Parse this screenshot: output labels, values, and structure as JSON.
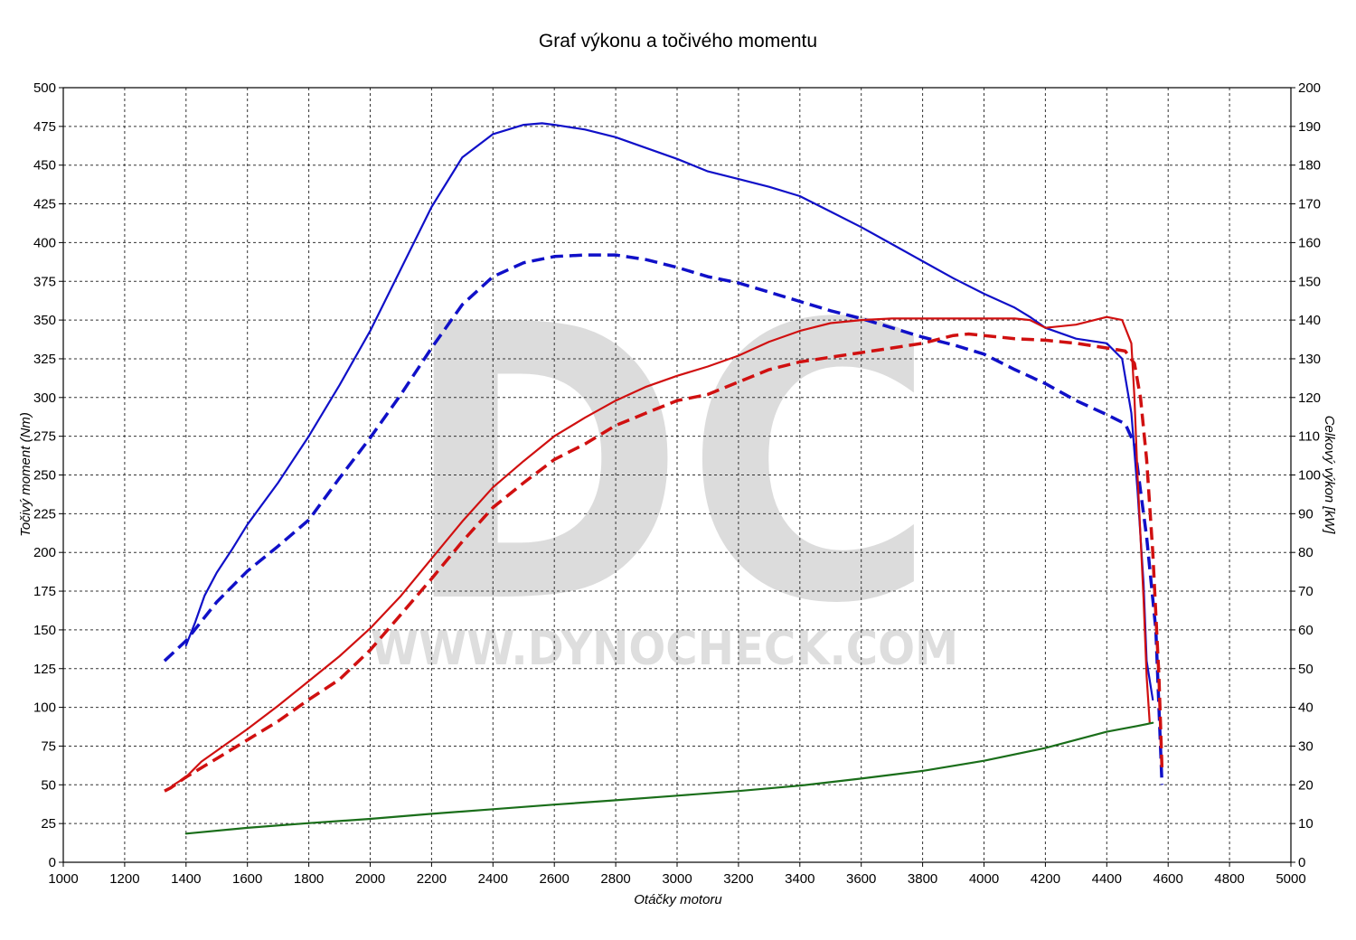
{
  "chart_data": {
    "type": "line",
    "title": "Graf výkonu a točivého momentu",
    "xlabel": "Otáčky motoru",
    "ylabel_left": "Točivý moment (Nm)",
    "ylabel_right": "Celkový výkon [kW]",
    "xlim": [
      1000,
      5000
    ],
    "ylim_left": [
      0,
      500
    ],
    "ylim_right": [
      0,
      200
    ],
    "x_ticks": [
      "1000",
      "1200",
      "1400",
      "1600",
      "1800",
      "2000",
      "2200",
      "2400",
      "2600",
      "2800",
      "3000",
      "3200",
      "3400",
      "3600",
      "3800",
      "4000",
      "4200",
      "4400",
      "4600",
      "4800",
      "5000"
    ],
    "y_left_ticks": [
      "0",
      "25",
      "50",
      "75",
      "100",
      "125",
      "150",
      "175",
      "200",
      "225",
      "250",
      "275",
      "300",
      "325",
      "350",
      "375",
      "400",
      "425",
      "450",
      "475",
      "500"
    ],
    "y_right_ticks": [
      "0",
      "10",
      "20",
      "30",
      "40",
      "50",
      "60",
      "70",
      "80",
      "90",
      "100",
      "110",
      "120",
      "130",
      "140",
      "150",
      "160",
      "170",
      "180",
      "190",
      "200"
    ],
    "grid": true,
    "legend": "none",
    "watermark": {
      "logo": "DC",
      "url": "WWW.DYNOCHECK.COM"
    },
    "series": [
      {
        "axis": "left",
        "color": "#1010c8",
        "style": "solid",
        "x": [
          1400,
          1430,
          1460,
          1500,
          1550,
          1600,
          1700,
          1800,
          1900,
          2000,
          2100,
          2200,
          2300,
          2400,
          2500,
          2560,
          2600,
          2700,
          2800,
          2900,
          3000,
          3100,
          3200,
          3300,
          3400,
          3500,
          3600,
          3700,
          3800,
          3900,
          4000,
          4100,
          4150,
          4200,
          4300,
          4400,
          4450,
          4480,
          4500,
          4520,
          4530,
          4550
        ],
        "y": [
          140,
          155,
          172,
          187,
          202,
          218,
          245,
          275,
          308,
          343,
          383,
          423,
          455,
          470,
          476,
          477,
          476,
          473,
          468,
          461,
          454,
          446,
          441,
          436,
          430,
          420,
          410,
          399,
          388,
          377,
          367,
          358,
          352,
          345,
          338,
          335,
          325,
          290,
          240,
          180,
          130,
          105
        ]
      },
      {
        "axis": "left",
        "color": "#1010c8",
        "style": "dashed",
        "x": [
          1330,
          1400,
          1500,
          1600,
          1700,
          1800,
          1900,
          2000,
          2100,
          2200,
          2300,
          2400,
          2500,
          2600,
          2700,
          2800,
          2900,
          3000,
          3100,
          3200,
          3300,
          3400,
          3500,
          3600,
          3700,
          3800,
          3900,
          4000,
          4100,
          4200,
          4300,
          4400,
          4460,
          4490,
          4510,
          4530,
          4560,
          4580
        ],
        "y": [
          130,
          143,
          168,
          188,
          204,
          221,
          248,
          274,
          302,
          332,
          360,
          378,
          387,
          391,
          392,
          392,
          389,
          384,
          378,
          374,
          368,
          362,
          356,
          351,
          345,
          339,
          334,
          328,
          318,
          309,
          298,
          289,
          283,
          270,
          240,
          210,
          150,
          50
        ]
      },
      {
        "axis": "left",
        "color": "#d01010",
        "style": "solid",
        "x": [
          1360,
          1400,
          1450,
          1500,
          1600,
          1700,
          1800,
          1900,
          2000,
          2100,
          2200,
          2300,
          2400,
          2500,
          2600,
          2700,
          2800,
          2900,
          3000,
          3100,
          3200,
          3300,
          3400,
          3500,
          3600,
          3700,
          3800,
          3900,
          4000,
          4100,
          4150,
          4200,
          4300,
          4400,
          4450,
          4480,
          4490,
          4500,
          4520,
          4530,
          4540
        ],
        "y": [
          50,
          55,
          65,
          72,
          86,
          101,
          117,
          133,
          151,
          172,
          196,
          220,
          242,
          259,
          275,
          287,
          298,
          307,
          314,
          320,
          327,
          336,
          343,
          348,
          350,
          351,
          351,
          351,
          351,
          351,
          350,
          345,
          347,
          352,
          350,
          335,
          300,
          250,
          170,
          120,
          90
        ]
      },
      {
        "axis": "left",
        "color": "#d01010",
        "style": "dashed",
        "x": [
          1330,
          1350,
          1400,
          1500,
          1600,
          1700,
          1800,
          1900,
          2000,
          2100,
          2200,
          2300,
          2400,
          2500,
          2600,
          2700,
          2800,
          2900,
          3000,
          3100,
          3200,
          3300,
          3400,
          3500,
          3600,
          3700,
          3800,
          3900,
          3950,
          4000,
          4100,
          4200,
          4300,
          4400,
          4460,
          4490,
          4510,
          4530,
          4550,
          4570,
          4580
        ],
        "y": [
          46,
          48,
          55,
          67,
          79,
          91,
          105,
          118,
          137,
          160,
          183,
          207,
          229,
          245,
          260,
          270,
          282,
          290,
          298,
          302,
          310,
          318,
          323,
          326,
          329,
          332,
          335,
          340,
          341,
          340,
          338,
          337,
          335,
          332,
          330,
          322,
          300,
          260,
          200,
          120,
          60
        ]
      },
      {
        "axis": "right",
        "color": "#1a6e1a",
        "style": "solid",
        "x": [
          1400,
          1600,
          1800,
          2000,
          2200,
          2400,
          2600,
          2800,
          3000,
          3200,
          3400,
          3600,
          3800,
          4000,
          4200,
          4300,
          4400,
          4500,
          4550
        ],
        "y": [
          7.4,
          8.9,
          10.1,
          11.2,
          12.5,
          13.7,
          14.9,
          16.0,
          17.2,
          18.4,
          19.8,
          21.6,
          23.6,
          26.2,
          29.5,
          31.6,
          33.7,
          35.2,
          36.0
        ]
      }
    ]
  }
}
